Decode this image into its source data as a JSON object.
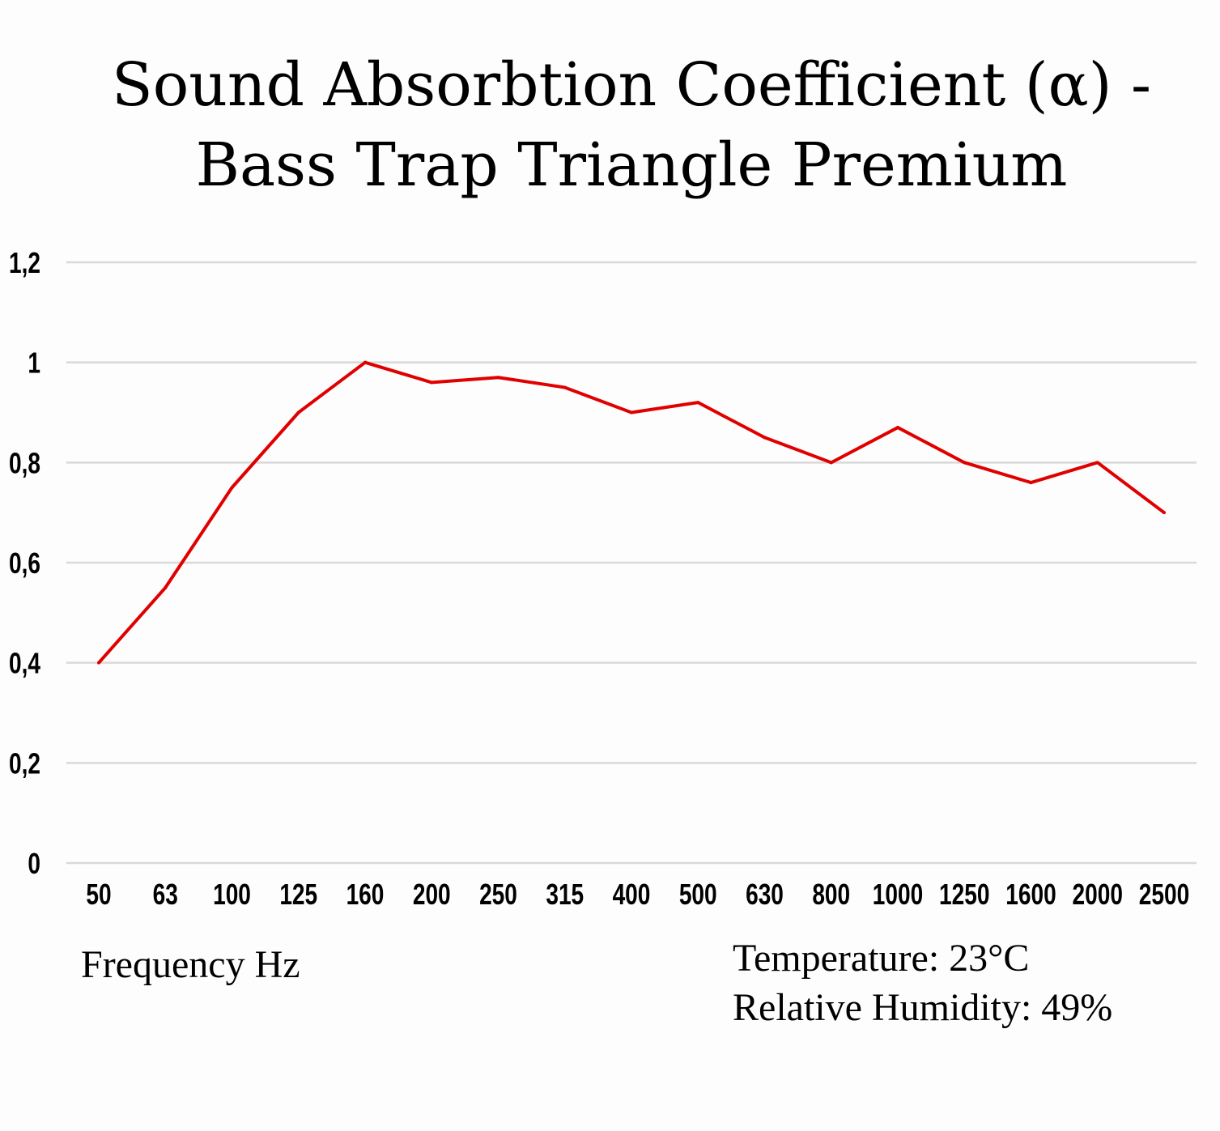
{
  "chart_data": {
    "type": "line",
    "title": [
      "Sound Absorbtion Coefficient (α) -",
      "Bass Trap Triangle Premium"
    ],
    "xlabel": "Frequency Hz",
    "ylabel": "",
    "categories": [
      "50",
      "63",
      "100",
      "125",
      "160",
      "200",
      "250",
      "315",
      "400",
      "500",
      "630",
      "800",
      "1000",
      "1250",
      "1600",
      "2000",
      "2500"
    ],
    "series": [
      {
        "name": "Sound Absorption Coefficient",
        "color": "#e00000",
        "values": [
          0.4,
          0.55,
          0.75,
          0.9,
          1.0,
          0.96,
          0.97,
          0.95,
          0.9,
          0.92,
          0.85,
          0.8,
          0.87,
          0.8,
          0.76,
          0.8,
          0.7
        ]
      }
    ],
    "ylim": [
      0,
      1.2
    ],
    "yticks": [
      0,
      0.2,
      0.4,
      0.6,
      0.8,
      1,
      1.2
    ],
    "ytick_labels": [
      "0",
      "0,2",
      "0,4",
      "0,6",
      "0,8",
      "1",
      "1,2"
    ],
    "grid": true,
    "grid_color": "#d9d9d9",
    "annotations": [
      "Temperature: 23°C",
      "Relative Humidity: 49%"
    ]
  }
}
